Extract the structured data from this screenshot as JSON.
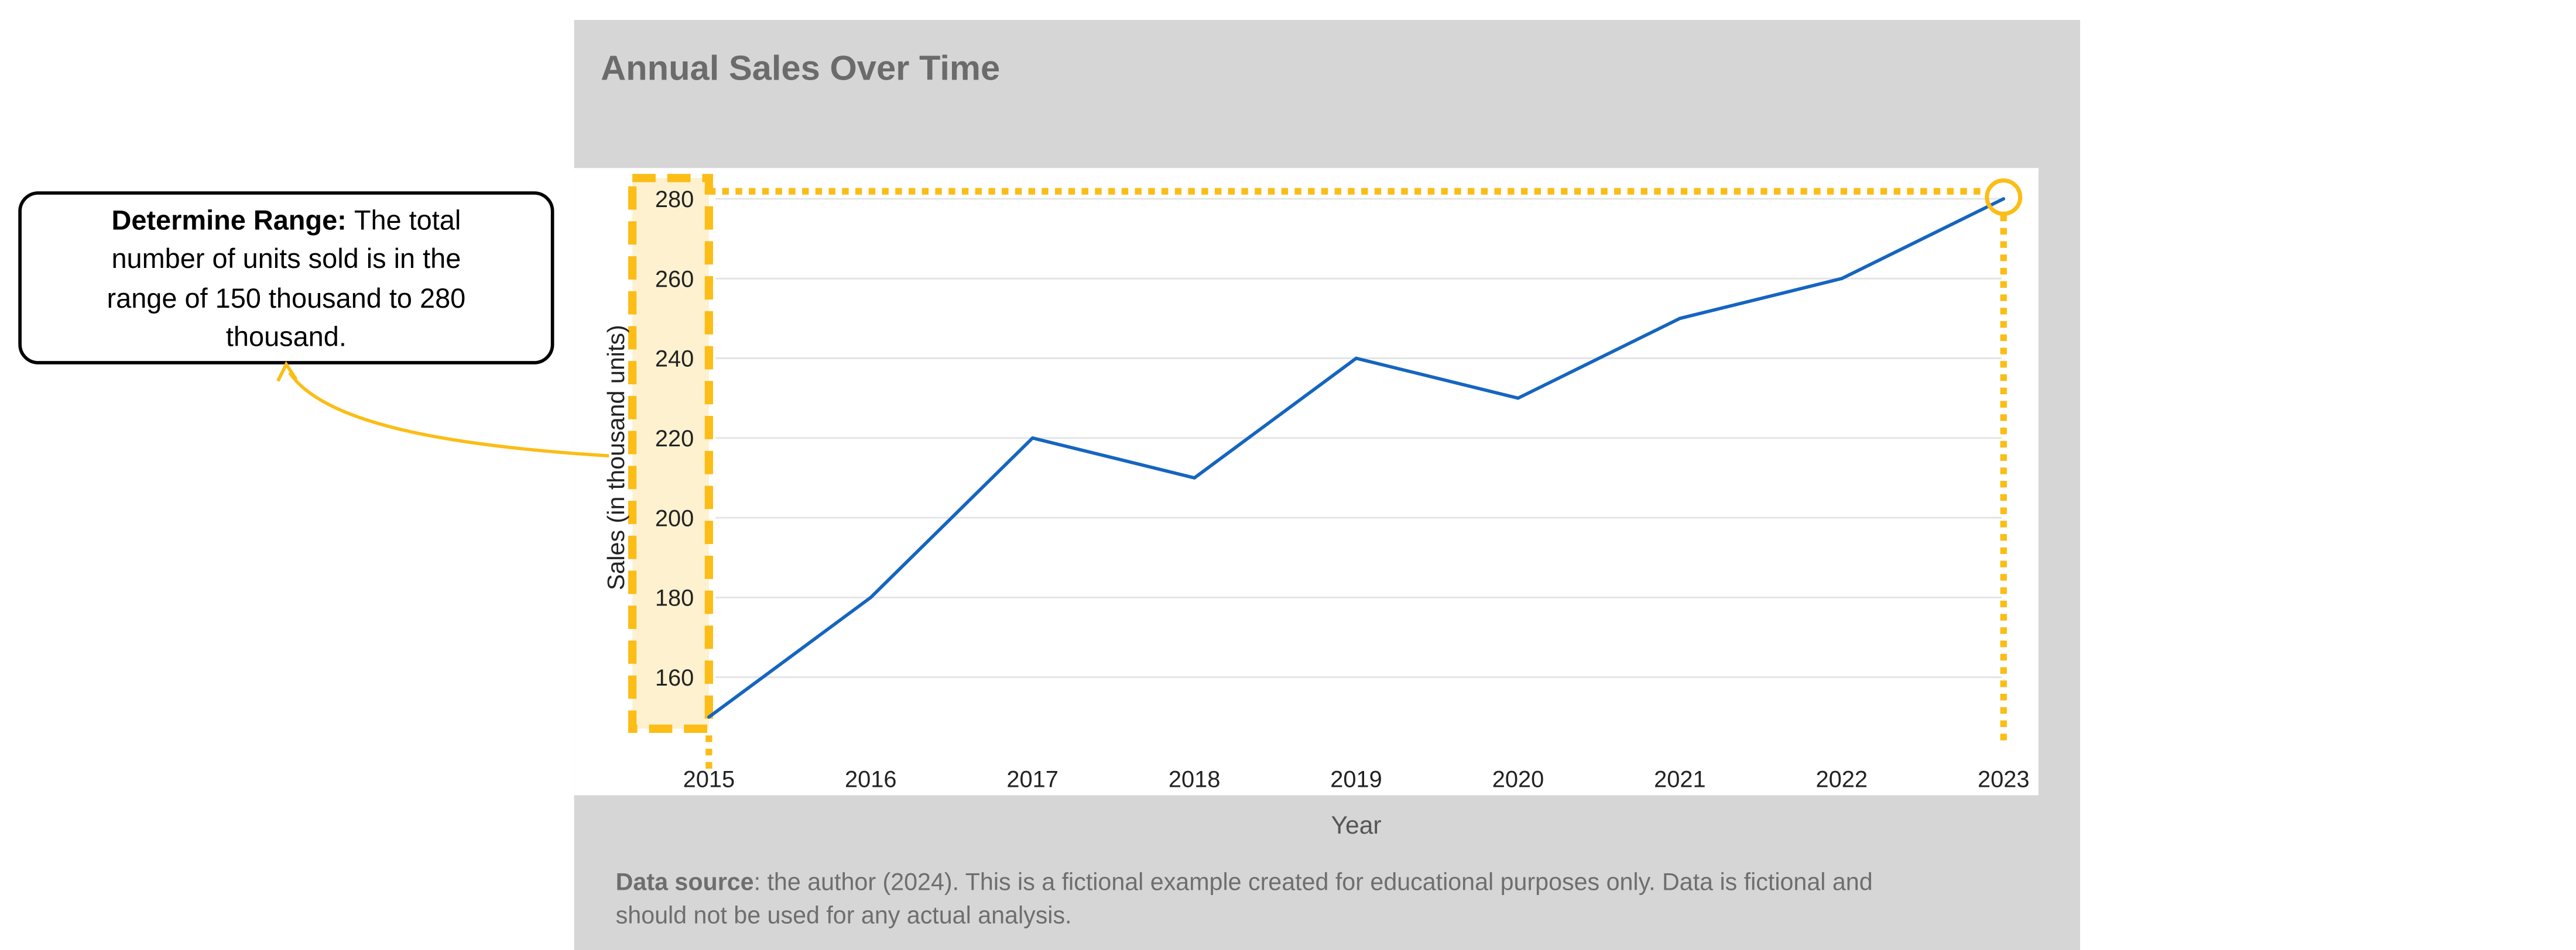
{
  "chart_data": {
    "type": "line",
    "title": "Annual Sales Over Time",
    "xlabel": "Year",
    "ylabel": "Sales (in thousand units)",
    "x": [
      "2015",
      "2016",
      "2017",
      "2018",
      "2019",
      "2020",
      "2021",
      "2022",
      "2023"
    ],
    "y_ticks": [
      "160",
      "180",
      "200",
      "220",
      "240",
      "260",
      "280"
    ],
    "series": [
      {
        "values": [
          150,
          180,
          220,
          210,
          240,
          230,
          250,
          260,
          280
        ]
      }
    ],
    "ylim": [
      140,
      282
    ],
    "grid": true,
    "legend": false
  },
  "annotation": {
    "label_bold": "Determine Range:",
    "label_rest_lines": [
      "The total",
      "number of units sold is in the",
      "range of 150 thousand to 280",
      "thousand."
    ]
  },
  "footer": {
    "source_label": "Data source",
    "source_text_lines": [
      ": the author (2024). This is a fictional example created for educational purposes only. Data is fictional and",
      "should not be used for any actual analysis."
    ]
  },
  "colors": {
    "panel_bg": "#d6d6d6",
    "plot_bg": "#ffffff",
    "grid": "#e3e3e3",
    "line": "#1565c0",
    "highlight": "#fbbd16",
    "highlight_fill": "#fdf1cf",
    "title_text": "#6b6b6b",
    "axis_text": "#222222",
    "xlabel_text": "#555555",
    "footer_text": "#6e6e6e"
  }
}
